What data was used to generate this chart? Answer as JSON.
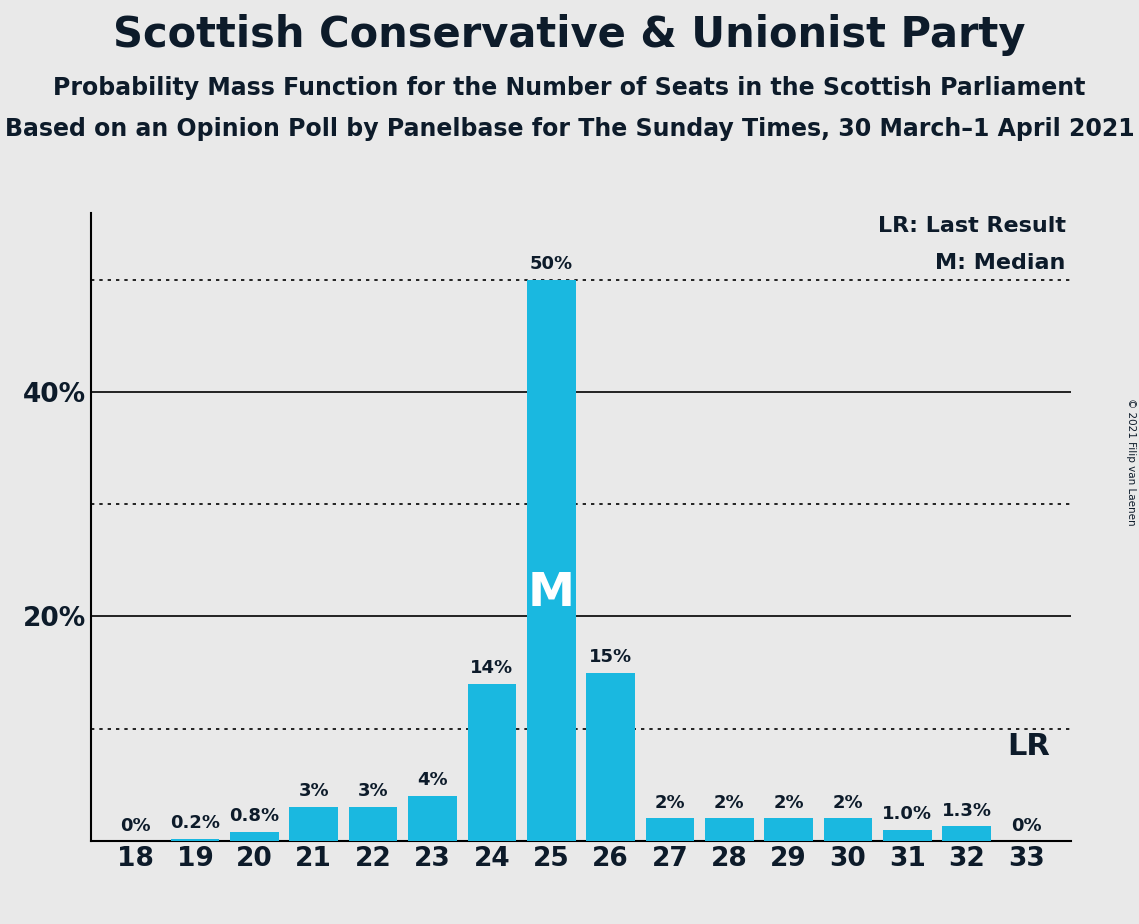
{
  "title": "Scottish Conservative & Unionist Party",
  "subtitle1": "Probability Mass Function for the Number of Seats in the Scottish Parliament",
  "subtitle2": "Based on an Opinion Poll by Panelbase for The Sunday Times, 30 March–1 April 2021",
  "copyright": "© 2021 Filip van Laenen",
  "seats": [
    18,
    19,
    20,
    21,
    22,
    23,
    24,
    25,
    26,
    27,
    28,
    29,
    30,
    31,
    32,
    33
  ],
  "probabilities": [
    0.0,
    0.2,
    0.8,
    3.0,
    3.0,
    4.0,
    14.0,
    50.0,
    15.0,
    2.0,
    2.0,
    2.0,
    2.0,
    1.0,
    1.3,
    0.0
  ],
  "labels": [
    "0%",
    "0.2%",
    "0.8%",
    "3%",
    "3%",
    "4%",
    "14%",
    "50%",
    "15%",
    "2%",
    "2%",
    "2%",
    "2%",
    "1.0%",
    "1.3%",
    "0%"
  ],
  "bar_color": "#1ab8e0",
  "median_seat": 25,
  "lr_seat": 31,
  "lr_line_pct": 10.0,
  "ylim": [
    0,
    56
  ],
  "background_color": "#e9e9e9",
  "solid_line_pcts": [
    20.0,
    40.0
  ],
  "dotted_line_pcts": [
    10.0,
    30.0,
    50.0
  ],
  "title_fontsize": 30,
  "subtitle_fontsize": 17,
  "label_fontsize": 13,
  "axis_tick_fontsize": 19,
  "legend_fontsize": 16,
  "M_label_fontsize": 34,
  "LR_label_fontsize": 22,
  "text_color": "#0d1b2a"
}
